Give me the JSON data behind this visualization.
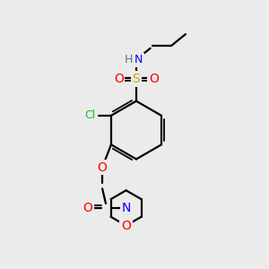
{
  "background_color": "#ebebeb",
  "atom_colors": {
    "C": "#000000",
    "H": "#4a7a8a",
    "N": "#0000FF",
    "O": "#FF0000",
    "S": "#ccaa00",
    "Cl": "#22bb22"
  },
  "bond_color": "#000000",
  "figsize": [
    3.0,
    3.0
  ],
  "dpi": 100
}
